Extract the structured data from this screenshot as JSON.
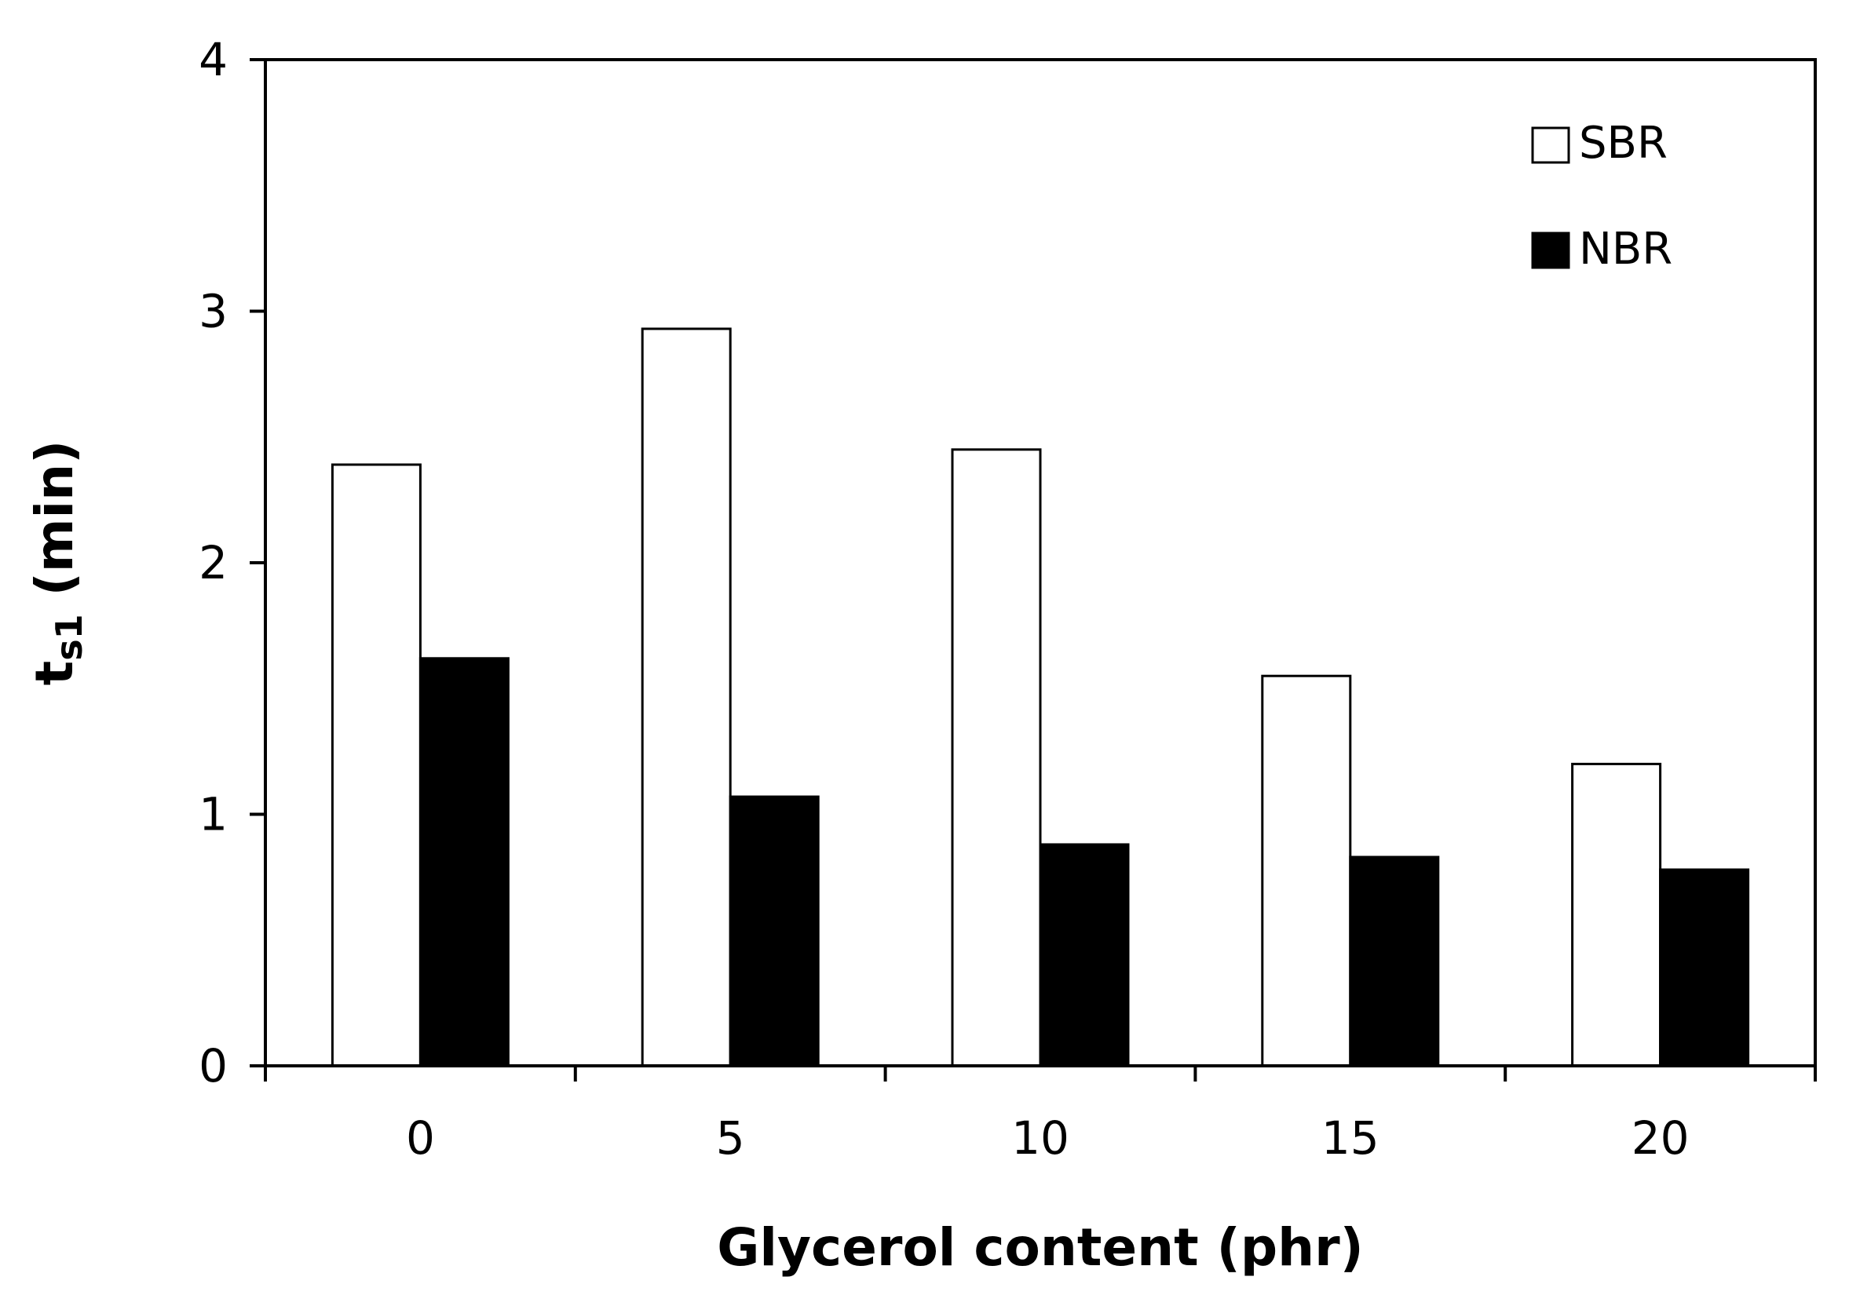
{
  "chart_data": {
    "type": "bar",
    "categories": [
      "0",
      "5",
      "10",
      "15",
      "20"
    ],
    "series": [
      {
        "name": "SBR",
        "values": [
          2.39,
          2.93,
          2.45,
          1.55,
          1.2
        ],
        "fill": "#ffffff",
        "stroke": "#000000"
      },
      {
        "name": "NBR",
        "values": [
          1.62,
          1.07,
          0.88,
          0.83,
          0.78
        ],
        "fill": "#000000",
        "stroke": "#000000"
      }
    ],
    "xlabel": "Glycerol content (phr)",
    "ylabel": {
      "main": "t",
      "sub": "s1",
      "rest": " (min)"
    },
    "ylim": [
      0,
      4
    ],
    "yticks": [
      "0",
      "1",
      "2",
      "3",
      "4"
    ],
    "grid": false,
    "legend_position": "top-right"
  }
}
